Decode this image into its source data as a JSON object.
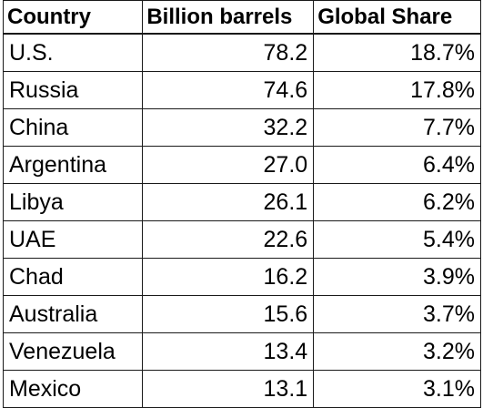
{
  "table": {
    "headers": [
      "Country",
      "Billion barrels",
      "Global Share"
    ],
    "rows": [
      [
        "U.S.",
        "78.2",
        "18.7%"
      ],
      [
        "Russia",
        "74.6",
        "17.8%"
      ],
      [
        "China",
        "32.2",
        "7.7%"
      ],
      [
        "Argentina",
        "27.0",
        "6.4%"
      ],
      [
        "Libya",
        "26.1",
        "6.2%"
      ],
      [
        "UAE",
        "22.6",
        "5.4%"
      ],
      [
        "Chad",
        "16.2",
        "3.9%"
      ],
      [
        "Australia",
        "15.6",
        "3.7%"
      ],
      [
        "Venezuela",
        "13.4",
        "3.2%"
      ],
      [
        "Mexico",
        "13.1",
        "3.1%"
      ]
    ]
  }
}
